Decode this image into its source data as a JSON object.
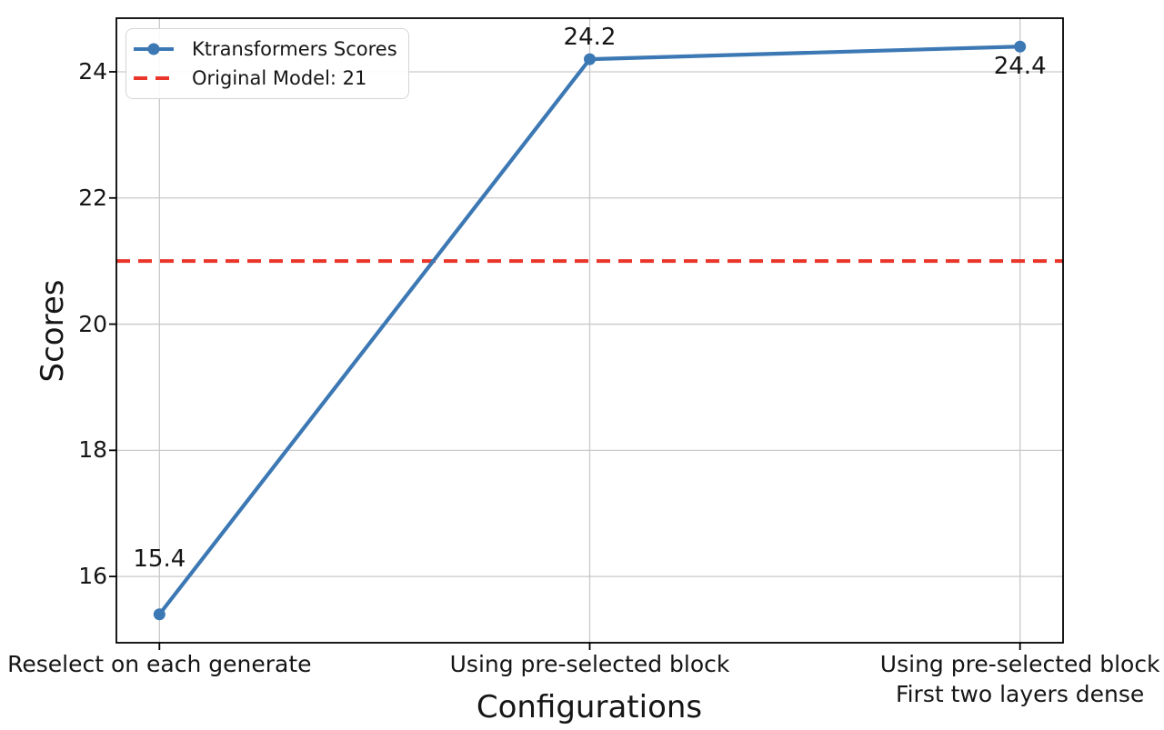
{
  "figure": {
    "background": "#ffffff",
    "text_color": "#161616",
    "grid_color": "#c9c9c9",
    "spine_color": "#000000"
  },
  "legend": {
    "position": "upper left",
    "items": [
      {
        "label": "Ktransformers Scores",
        "style": "solid-line-with-marker",
        "color": "#3c78b4"
      },
      {
        "label": "Original Model: 21",
        "style": "dashed-line",
        "color": "#e9352a"
      }
    ]
  },
  "chart_data": {
    "type": "line",
    "title": "",
    "xlabel": "Configurations",
    "ylabel": "Scores",
    "categories": [
      "Reselect on each generate",
      "Using pre-selected block",
      "Using pre-selected block\nFirst two layers dense"
    ],
    "series": [
      {
        "name": "Ktransformers Scores",
        "values": [
          15.4,
          24.2,
          24.4
        ],
        "color": "#3c78b4",
        "marker": "circle",
        "linestyle": "solid"
      }
    ],
    "point_labels": [
      "15.4",
      "24.2",
      "24.4"
    ],
    "reference_line": {
      "label": "Original Model: 21",
      "value": 21,
      "color": "#e9352a",
      "linestyle": "dashed"
    },
    "yticks": [
      16,
      18,
      20,
      22,
      24
    ],
    "ylim": [
      14.95,
      24.85
    ],
    "xlim": [
      -0.1,
      2.1
    ],
    "grid": true,
    "legend_position": "upper left"
  }
}
